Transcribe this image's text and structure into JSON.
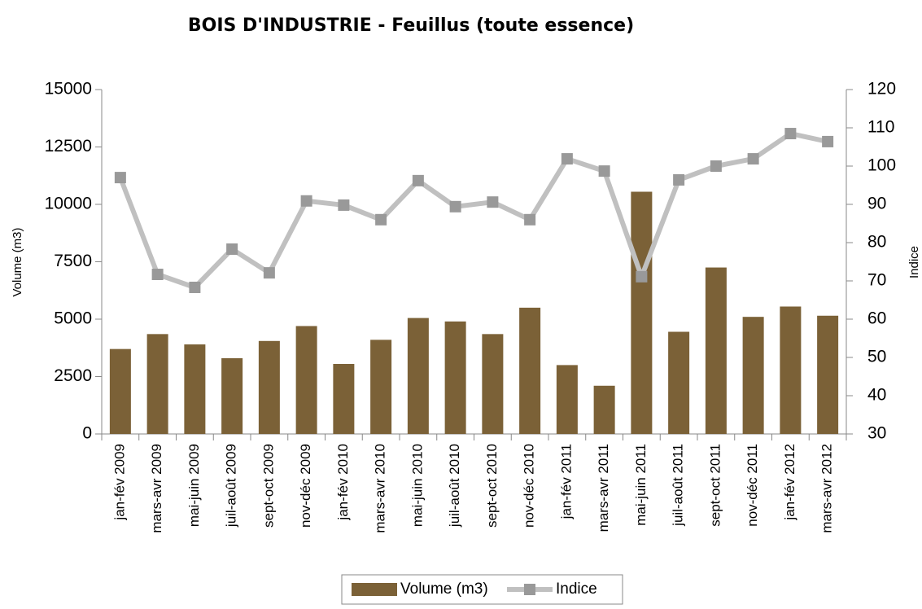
{
  "chart_data": {
    "type": "bar_line",
    "title": "BOIS D'INDUSTRIE - Feuillus (toute essence)",
    "ylabel": "Volume (m3)",
    "y2label": "Indice",
    "categories": [
      "jan-fév 2009",
      "mars-avr 2009",
      "mai-juin 2009",
      "juil-août 2009",
      "sept-oct 2009",
      "nov-déc 2009",
      "jan-fév 2010",
      "mars-avr 2010",
      "mai-juin 2010",
      "juil-août 2010",
      "sept-oct 2010",
      "nov-déc 2010",
      "jan-fév 2011",
      "mars-avr 2011",
      "mai-juin 2011",
      "juil-août 2011",
      "sept-oct 2011",
      "nov-déc 2011",
      "jan-fév 2012",
      "mars-avr 2012"
    ],
    "series": [
      {
        "name": "Volume (m3)",
        "kind": "bar",
        "color": "#7b6137",
        "values": [
          3700,
          4350,
          3900,
          3300,
          4050,
          4700,
          3050,
          4100,
          5050,
          4900,
          4350,
          5500,
          3000,
          2100,
          10550,
          4450,
          7250,
          5100,
          5550,
          5150
        ]
      },
      {
        "name": "Indice",
        "kind": "line",
        "axis": "y2",
        "color": "#c0c0c0",
        "marker_color": "#999999",
        "values": [
          97.0,
          71.7,
          68.3,
          78.3,
          72.1,
          90.9,
          89.8,
          86.0,
          96.2,
          89.4,
          90.6,
          86.0,
          101.9,
          98.7,
          71.1,
          96.4,
          100.0,
          101.9,
          108.5,
          106.4
        ]
      }
    ],
    "ylim": [
      0,
      15000
    ],
    "yticks": [
      0,
      2500,
      5000,
      7500,
      10000,
      12500,
      15000
    ],
    "y2lim": [
      30,
      120
    ],
    "y2ticks": [
      30,
      40,
      50,
      60,
      70,
      80,
      90,
      100,
      110,
      120
    ],
    "legend": "bottom"
  }
}
